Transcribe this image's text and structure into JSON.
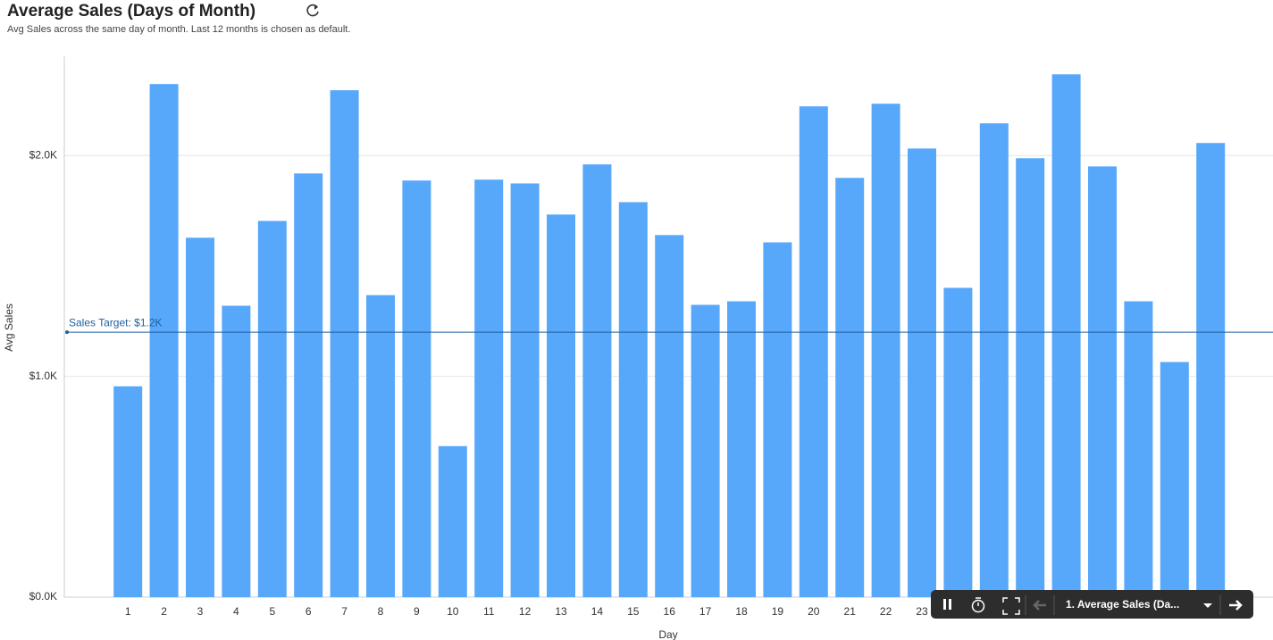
{
  "chart_data": {
    "type": "bar",
    "title": "Average Sales (Days of Month)",
    "subtitle": "Avg Sales across the same day of month. Last 12 months is chosen as default.",
    "x_label": "Day",
    "y_label": "Avg Sales",
    "categories": [
      "1",
      "2",
      "3",
      "4",
      "5",
      "6",
      "7",
      "8",
      "9",
      "10",
      "11",
      "12",
      "13",
      "14",
      "15",
      "16",
      "17",
      "18",
      "19",
      "20",
      "21",
      "22",
      "23",
      null,
      null,
      null,
      null,
      null,
      null,
      null,
      null
    ],
    "values": [
      955,
      2324,
      1628,
      1320,
      1704,
      1919,
      2296,
      1368,
      1887,
      684,
      1891,
      1874,
      1733,
      1960,
      1789,
      1640,
      1324,
      1340,
      1607,
      2223,
      1899,
      2235,
      2032,
      1401,
      2146,
      1988,
      2368,
      1951,
      1340,
      1065,
      2057
    ],
    "color": "#57a8fb",
    "ylim": [
      0,
      2450
    ],
    "yticks": [
      {
        "value": 0,
        "label": "$0.0K"
      },
      {
        "value": 1000,
        "label": "$1.0K"
      },
      {
        "value": 2000,
        "label": "$2.0K"
      }
    ],
    "grid": true,
    "reference_line": {
      "value": 1200,
      "label": "Sales Target: $1.2K",
      "color": "#1f5fa0"
    }
  },
  "toolbar": {
    "slide": "1. Average Sales (Da..."
  }
}
